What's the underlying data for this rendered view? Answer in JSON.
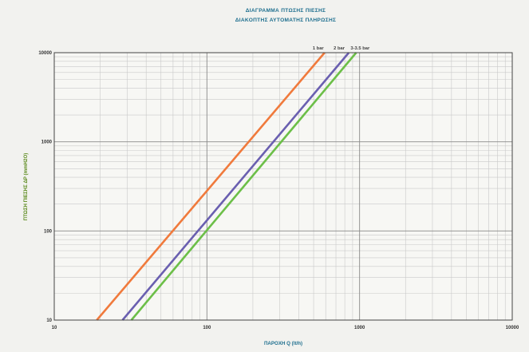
{
  "chart_data": {
    "type": "line",
    "title_lines": [
      "ΔΙΑΓΡΑΜΜΑ ΠΤΩΣΗΣ ΠΙΕΣΗΣ",
      "ΔΙΑΚΟΠΤΗΣ ΑΥΤΟΜΑΤΗΣ ΠΛΗΡΩΣΗΣ"
    ],
    "xlabel": "ΠΑΡΟΧΗ Q (lt/h)",
    "ylabel": "ΠΤΩΣΗ ΠΙΕΣΗΣ ΔP (mmH2O)",
    "x_scale": "log",
    "y_scale": "log",
    "xlim": [
      10,
      10000
    ],
    "ylim": [
      10,
      10000
    ],
    "x_ticks": [
      {
        "value": 10,
        "label": "10"
      },
      {
        "value": 100,
        "label": "100"
      },
      {
        "value": 1000,
        "label": "1000"
      },
      {
        "value": 10000,
        "label": "10000"
      }
    ],
    "y_ticks": [
      {
        "value": 10,
        "label": "10"
      },
      {
        "value": 100,
        "label": "100"
      },
      {
        "value": 1000,
        "label": "1000"
      },
      {
        "value": 10000,
        "label": "10000"
      }
    ],
    "grid": true,
    "series": [
      {
        "name": "1 bar",
        "color": "#f07a3c",
        "points": [
          [
            19,
            10
          ],
          [
            590,
            10000
          ]
        ]
      },
      {
        "name": "2 bar",
        "color": "#6a5fb0",
        "points": [
          [
            28,
            10
          ],
          [
            850,
            10000
          ]
        ]
      },
      {
        "name": "3-3.5 bar",
        "color": "#6cbf48",
        "points": [
          [
            32,
            10
          ],
          [
            950,
            10000
          ]
        ]
      }
    ],
    "colors": {
      "background": "#f2f2ef",
      "grid": "#c9c9c9",
      "axis": "#444444",
      "title": "#1e6f8f",
      "xlabel": "#1e6f8f",
      "ylabel": "#5b8a1c"
    }
  }
}
